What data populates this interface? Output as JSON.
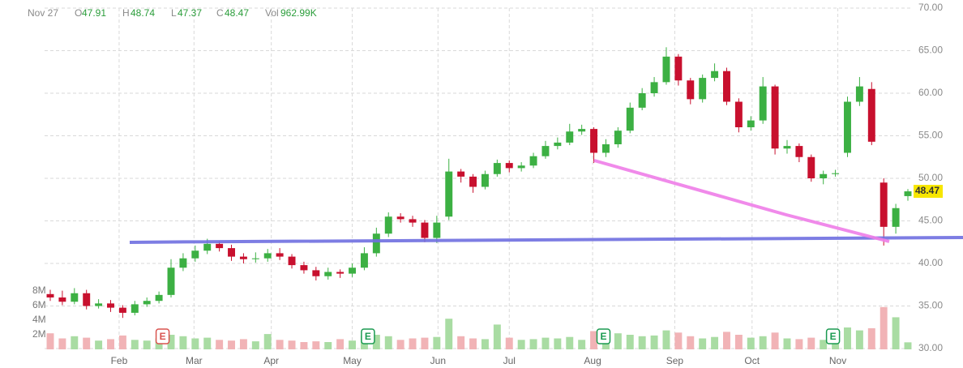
{
  "header": {
    "date": "Nov 27",
    "items": [
      {
        "label": "O",
        "text": "47.91"
      },
      {
        "label": "H",
        "text": "48.74"
      },
      {
        "label": "L",
        "text": "47.37"
      },
      {
        "label": "C",
        "text": "48.47"
      },
      {
        "label": "Vol",
        "text": "962.99K"
      }
    ]
  },
  "chart_data": {
    "type": "candlestick",
    "up_color": "#3cb043",
    "down_color": "#c8102e",
    "volume_up_color": "#a9dca3",
    "volume_down_color": "#f1b3b6",
    "xlim": [
      0,
      71
    ],
    "xticks": [
      {
        "value": 5.7,
        "label": "Feb"
      },
      {
        "value": 11.9,
        "label": "Mar"
      },
      {
        "value": 18.3,
        "label": "Apr"
      },
      {
        "value": 25.0,
        "label": "May"
      },
      {
        "value": 32.1,
        "label": "Jun"
      },
      {
        "value": 38.0,
        "label": "Jul"
      },
      {
        "value": 44.9,
        "label": "Aug"
      },
      {
        "value": 51.7,
        "label": "Sep"
      },
      {
        "value": 58.1,
        "label": "Oct"
      },
      {
        "value": 65.2,
        "label": "Nov"
      }
    ],
    "ylim": [
      30,
      70
    ],
    "yticks": [
      {
        "value": 30,
        "label": "30.00"
      },
      {
        "value": 35,
        "label": "35.00"
      },
      {
        "value": 40,
        "label": "40.00"
      },
      {
        "value": 45,
        "label": "45.00"
      },
      {
        "value": 50,
        "label": "50.00"
      },
      {
        "value": 55,
        "label": "55.00"
      },
      {
        "value": 60,
        "label": "60.00"
      },
      {
        "value": 65,
        "label": "65.00"
      },
      {
        "value": 70,
        "label": "70.00"
      }
    ],
    "y2lim": [
      0,
      8
    ],
    "y2ticks": [
      {
        "value": 2,
        "label": "2M"
      },
      {
        "value": 4,
        "label": "4M"
      },
      {
        "value": 6,
        "label": "6M"
      },
      {
        "value": 8,
        "label": "8M"
      }
    ],
    "grid": true,
    "last_price": 48.47,
    "events": [
      {
        "label": "E",
        "x": 9.3,
        "color": "#d9534f"
      },
      {
        "label": "E",
        "x": 26.3,
        "color": "#1a9a50"
      },
      {
        "label": "E",
        "x": 45.8,
        "color": "#1a9a50"
      },
      {
        "label": "E",
        "x": 64.8,
        "color": "#1a9a50"
      }
    ],
    "open": [
      36.4,
      36.0,
      35.5,
      36.5,
      35.0,
      35.3,
      34.8,
      34.2,
      35.2,
      35.6,
      36.3,
      39.5,
      40.6,
      41.5,
      42.3,
      41.8,
      40.8,
      40.5,
      40.6,
      41.2,
      40.8,
      39.8,
      39.2,
      38.5,
      39.0,
      38.8,
      39.5,
      41.2,
      43.5,
      45.5,
      45.2,
      44.8,
      43.0,
      45.5,
      50.8,
      50.2,
      49.0,
      50.5,
      51.8,
      51.2,
      51.5,
      52.6,
      53.8,
      54.2,
      55.5,
      55.8,
      53.0,
      54.0,
      55.6,
      58.3,
      60.0,
      61.3,
      64.3,
      61.5,
      59.3,
      61.8,
      62.6,
      59.0,
      56.0,
      56.8,
      60.8,
      53.5,
      53.8,
      52.5,
      50.0,
      50.5,
      53.0,
      59.0,
      60.5,
      49.5,
      44.3,
      47.91
    ],
    "high": [
      36.9,
      36.8,
      37.1,
      36.9,
      35.8,
      35.7,
      35.1,
      35.6,
      36.0,
      36.7,
      40.5,
      41.2,
      42.1,
      42.9,
      42.6,
      42.2,
      41.2,
      41.3,
      41.7,
      41.8,
      41.1,
      40.2,
      39.6,
      39.5,
      39.3,
      40.0,
      41.9,
      44.2,
      46.0,
      45.9,
      45.6,
      45.1,
      45.6,
      52.3,
      51.1,
      50.5,
      50.9,
      52.2,
      52.1,
      51.9,
      53.0,
      54.4,
      54.8,
      56.4,
      56.3,
      56.0,
      54.6,
      56.0,
      58.9,
      60.6,
      61.9,
      65.4,
      64.6,
      61.8,
      62.2,
      63.5,
      63.0,
      59.4,
      57.3,
      61.9,
      61.0,
      54.5,
      54.1,
      52.8,
      50.9,
      51.0,
      59.6,
      61.9,
      61.3,
      50.0,
      47.0,
      48.74
    ],
    "low": [
      35.6,
      35.1,
      35.2,
      34.6,
      34.7,
      34.3,
      33.6,
      33.9,
      34.9,
      35.3,
      36.0,
      39.1,
      40.2,
      41.1,
      41.4,
      40.3,
      40.0,
      40.1,
      40.2,
      40.4,
      39.4,
      38.8,
      38.0,
      38.1,
      38.3,
      38.4,
      39.2,
      40.8,
      43.1,
      44.8,
      44.3,
      42.5,
      42.4,
      45.1,
      49.5,
      48.3,
      48.7,
      50.2,
      50.7,
      50.8,
      51.2,
      52.3,
      53.4,
      53.9,
      55.1,
      51.8,
      52.5,
      53.6,
      55.3,
      58.0,
      59.6,
      61.0,
      60.9,
      58.7,
      58.9,
      61.4,
      58.6,
      55.4,
      55.6,
      56.4,
      52.8,
      52.9,
      51.9,
      49.6,
      49.3,
      50.2,
      52.5,
      58.5,
      53.9,
      42.1,
      43.5,
      47.37
    ],
    "close": [
      36.0,
      35.5,
      36.5,
      35.0,
      35.3,
      34.8,
      34.2,
      35.2,
      35.6,
      36.3,
      39.5,
      40.6,
      41.5,
      42.3,
      41.8,
      40.8,
      40.5,
      40.6,
      41.2,
      40.8,
      39.8,
      39.2,
      38.5,
      39.0,
      38.8,
      39.5,
      41.2,
      43.5,
      45.5,
      45.2,
      44.8,
      43.0,
      44.8,
      50.8,
      50.2,
      49.0,
      50.5,
      51.8,
      51.2,
      51.5,
      52.6,
      53.8,
      54.2,
      55.5,
      55.8,
      53.0,
      54.0,
      55.6,
      58.3,
      60.0,
      61.3,
      64.3,
      61.5,
      59.3,
      61.8,
      62.6,
      59.0,
      56.0,
      56.8,
      60.8,
      53.5,
      53.8,
      52.5,
      50.0,
      50.5,
      50.6,
      59.0,
      60.8,
      54.3,
      44.3,
      46.5,
      48.47
    ],
    "volume": [
      2.2,
      1.5,
      1.8,
      1.6,
      1.2,
      1.4,
      1.9,
      1.3,
      1.2,
      1.5,
      2.0,
      1.8,
      1.5,
      1.6,
      1.3,
      1.2,
      1.4,
      1.1,
      2.1,
      1.3,
      1.2,
      1.0,
      1.1,
      1.0,
      1.4,
      1.2,
      1.9,
      2.0,
      1.8,
      1.3,
      1.5,
      1.6,
      1.7,
      4.2,
      1.8,
      1.5,
      1.4,
      3.4,
      1.6,
      1.3,
      1.4,
      1.6,
      1.5,
      1.7,
      1.3,
      2.5,
      1.6,
      2.2,
      2.0,
      1.8,
      1.9,
      2.6,
      2.3,
      1.8,
      1.5,
      1.7,
      2.4,
      2.0,
      1.6,
      1.8,
      2.3,
      1.5,
      1.4,
      1.6,
      1.3,
      1.4,
      3.0,
      2.6,
      2.9,
      5.8,
      4.4,
      0.96299
    ]
  }
}
